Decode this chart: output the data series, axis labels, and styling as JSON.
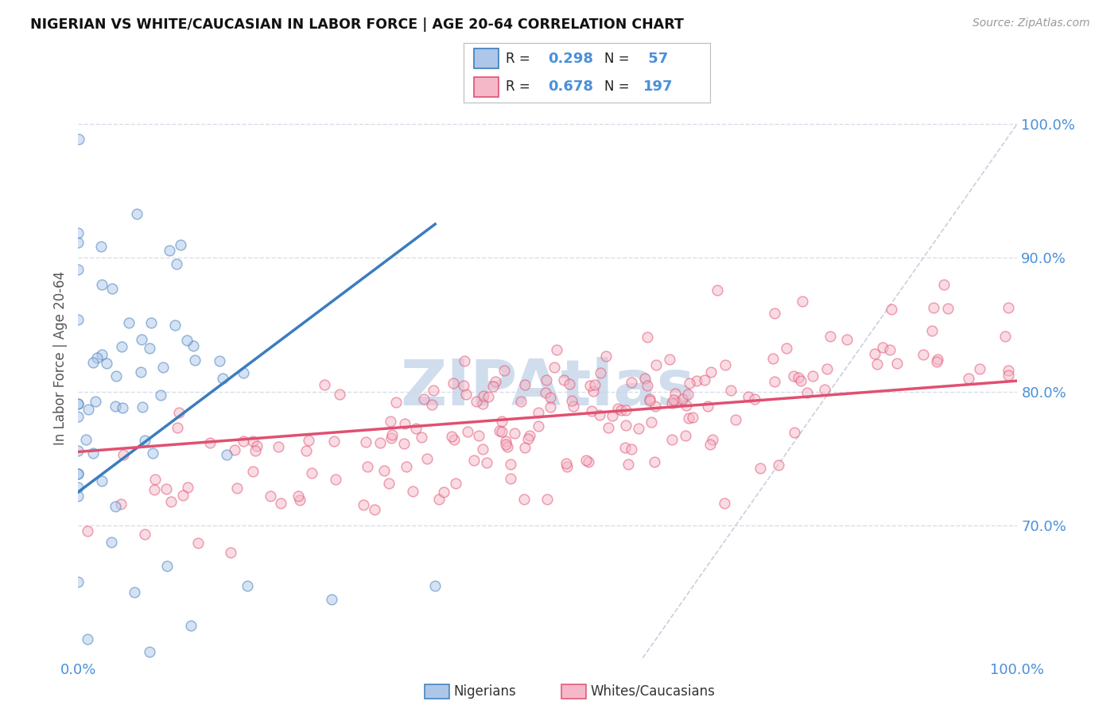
{
  "title": "NIGERIAN VS WHITE/CAUCASIAN IN LABOR FORCE | AGE 20-64 CORRELATION CHART",
  "source": "Source: ZipAtlas.com",
  "ylabel": "In Labor Force | Age 20-64",
  "xlim": [
    0.0,
    1.0
  ],
  "ylim": [
    0.6,
    1.05
  ],
  "y_ticks": [
    0.7,
    0.8,
    0.9,
    1.0
  ],
  "y_tick_labels": [
    "70.0%",
    "80.0%",
    "90.0%",
    "100.0%"
  ],
  "x_ticks": [
    0.0,
    0.1,
    0.2,
    0.3,
    0.4,
    0.5,
    0.6,
    0.7,
    0.8,
    0.9,
    1.0
  ],
  "blue_scatter_color": "#aec6e8",
  "pink_scatter_color": "#f5b8c8",
  "blue_line_color": "#3a7dbf",
  "pink_line_color": "#e05070",
  "diagonal_color": "#c0c8d8",
  "watermark_color": "#c8d8ea",
  "watermark_text": "ZIPAtlas",
  "title_color": "#111111",
  "source_color": "#999999",
  "tick_label_color": "#4a90d9",
  "grid_color": "#d8dde8",
  "background_color": "#ffffff",
  "blue_R": 0.298,
  "pink_R": 0.678,
  "blue_N": 57,
  "pink_N": 197,
  "seed": 42,
  "scatter_size": 85,
  "scatter_alpha": 0.5,
  "scatter_linewidth": 1.1,
  "blue_line_x0": 0.0,
  "blue_line_x1": 0.38,
  "blue_line_y0": 0.725,
  "blue_line_y1": 0.925,
  "pink_line_x0": 0.0,
  "pink_line_x1": 1.0,
  "pink_line_y0": 0.755,
  "pink_line_y1": 0.808
}
